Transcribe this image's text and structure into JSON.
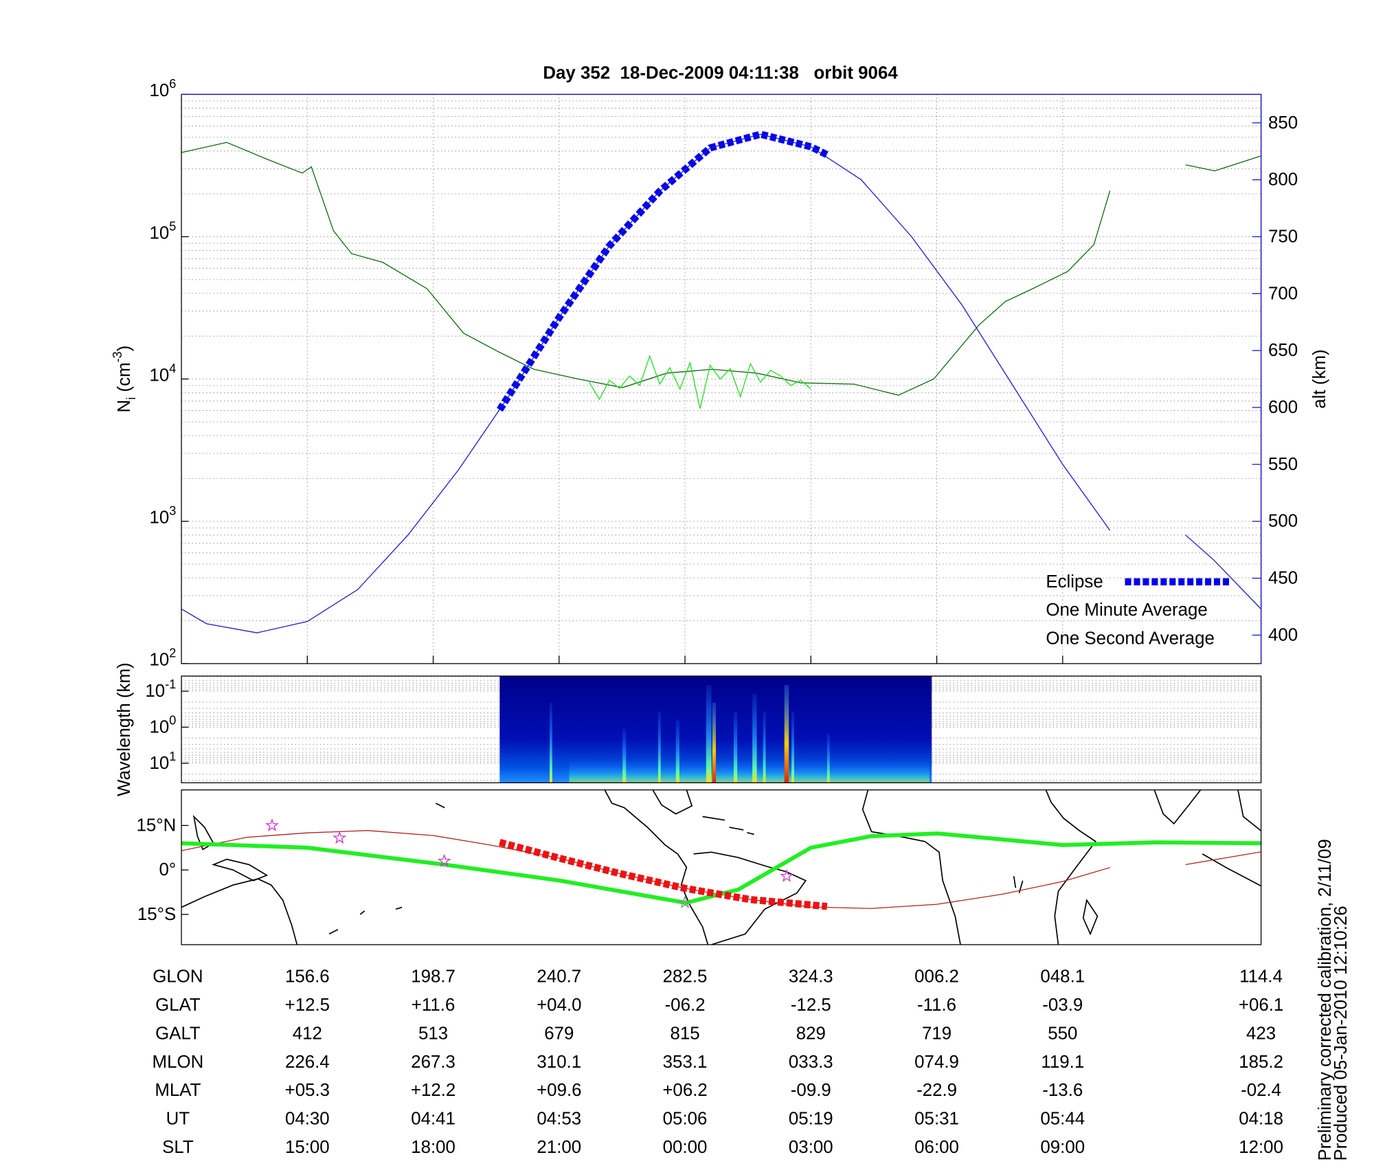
{
  "title": "Day 352  18-Dec-2009 04:11:38   orbit 9064",
  "chart_data": [
    {
      "type": "line",
      "xlim": [
        17.5,
        124.7
      ],
      "xticks": [
        30,
        42.5,
        55,
        67.5,
        80,
        92.5,
        105
      ],
      "ylim": [
        100,
        1000000
      ],
      "log_y": true,
      "yticks": [
        {
          "value": 100,
          "label": "10",
          "exponent": "2"
        },
        {
          "value": 1000,
          "label": "10",
          "exponent": "3"
        },
        {
          "value": 10000,
          "label": "10",
          "exponent": "4"
        },
        {
          "value": 100000,
          "label": "10",
          "exponent": "5"
        },
        {
          "value": 1000000,
          "label": "10",
          "exponent": "6"
        }
      ],
      "ylabel": {
        "symbol": "N",
        "subscript": "i",
        "unit": " (cm",
        "superscript": "-3",
        "close": ")"
      },
      "y2lim": [
        375,
        875
      ],
      "y2ticks": [
        400,
        450,
        500,
        550,
        600,
        650,
        700,
        750,
        800,
        850
      ],
      "y2label": "alt (km)",
      "y2color": "#1a1ad0",
      "grid": "both",
      "legend": "lower right",
      "series": [
        {
          "name": "Eclipse",
          "color": "#0000ee",
          "axis": "y2",
          "style": "thick-dashed",
          "x": [
            49.1,
            55,
            60,
            65,
            70,
            75,
            80,
            81.6
          ],
          "values": [
            598,
            679,
            742,
            790,
            828,
            840,
            829,
            822
          ]
        },
        {
          "name": "One Minute Average",
          "color": "#0b6b0b",
          "legend_color": "#000000",
          "x": [
            17.5,
            22,
            26,
            29.5,
            30.4,
            32.6,
            34.4,
            37.5,
            41.9,
            45.5,
            49,
            52.5,
            56.9,
            61.3,
            65.7,
            70.2,
            74.6,
            79,
            84.3,
            88.7,
            92.2,
            96.7,
            99.3,
            102,
            105.5,
            108.1,
            109.7,
            113,
            117.2,
            120.1,
            124.7
          ],
          "values": [
            390000,
            460000,
            350000,
            280000,
            310000,
            110000,
            76000,
            66000,
            43000,
            21000,
            15500,
            11700,
            10000,
            8700,
            11000,
            11700,
            11000,
            9400,
            9200,
            7700,
            10000,
            24000,
            35000,
            43000,
            57000,
            88000,
            210000,
            null,
            320000,
            290000,
            370000
          ]
        },
        {
          "name": "One Second Average",
          "color": "#22dd22",
          "x": [
            58,
            59,
            60,
            61,
            62,
            63,
            64,
            65,
            66,
            67,
            68,
            69,
            70,
            71,
            72,
            73,
            74,
            75,
            76,
            77,
            78,
            79,
            80
          ],
          "values": [
            9500,
            7200,
            9800,
            8600,
            10500,
            9000,
            14500,
            9200,
            12000,
            8500,
            13000,
            6200,
            12500,
            10000,
            11800,
            7500,
            12800,
            9500,
            11500,
            10500,
            9000,
            9800,
            8500
          ]
        },
        {
          "color": "#1a1ad0",
          "axis": "y2",
          "x": [
            17.5,
            20,
            25,
            30,
            35,
            40,
            45,
            50,
            55,
            60,
            65,
            70,
            75,
            80,
            85,
            90,
            95,
            100,
            105,
            109.7,
            113,
            117.2,
            120,
            124.7
          ],
          "values": [
            423,
            410,
            402,
            412,
            440,
            488,
            545,
            610,
            679,
            742,
            790,
            828,
            840,
            829,
            800,
            750,
            690,
            620,
            550,
            492,
            null,
            488,
            466,
            423
          ]
        }
      ]
    },
    {
      "type": "spectrogram",
      "xlim": [
        17.5,
        124.7
      ],
      "ylim": [
        0.038,
        35
      ],
      "log_y": true,
      "inverted": true,
      "yticks": [
        {
          "value": 0.1,
          "label": "10",
          "exponent": "-1"
        },
        {
          "value": 1,
          "label": "10",
          "exponent": "0"
        },
        {
          "value": 10,
          "label": "10",
          "exponent": "1"
        }
      ],
      "ylabel": "Wavelength (km)",
      "grid": "y",
      "x_range": [
        49.1,
        92.0
      ]
    },
    {
      "type": "map",
      "xlim": [
        17.5,
        124.7
      ],
      "ylim": [
        -25.2,
        27
      ],
      "yticks": [
        {
          "value": -15,
          "label": "15°S"
        },
        {
          "value": 0,
          "label": "0°"
        },
        {
          "value": 15,
          "label": "15°N"
        }
      ],
      "series": [
        {
          "color": "#b22222",
          "x": [
            17.5,
            24,
            30,
            36,
            42.5,
            48,
            55,
            61,
            67.5,
            74,
            80,
            86,
            92.5,
            99,
            105,
            109.7,
            113,
            117.2,
            124.7
          ],
          "values": [
            6.5,
            11,
            12.5,
            13.3,
            11.6,
            8.5,
            4.0,
            -1.2,
            -6.2,
            -10,
            -12.5,
            -13,
            -11.6,
            -8.2,
            -3.9,
            0.8,
            null,
            1.8,
            6.1
          ]
        },
        {
          "color": "#22ee22",
          "style": "thick",
          "x": [
            17.5,
            30,
            43.6,
            55.1,
            67.6,
            72.8,
            80,
            86,
            92.6,
            105,
            114.3,
            124.7
          ],
          "values": [
            9,
            7.5,
            1.8,
            -3.6,
            -11.1,
            -6.6,
            7.5,
            11.4,
            12.3,
            8.4,
            9.3,
            9
          ]
        },
        {
          "color": "#ee1111",
          "style": "thick-dashed",
          "x": [
            49.1,
            55,
            61,
            67.5,
            74,
            81.6
          ],
          "values": [
            9.3,
            4,
            -1.2,
            -6.2,
            -10,
            -12.3
          ]
        }
      ],
      "points": {
        "colors": [
          "#cc33cc",
          "#cc33cc",
          "#cc33cc",
          "#888888",
          "#cc33cc"
        ],
        "x": [
          26.5,
          33.2,
          43.6,
          67.5,
          77.6
        ],
        "values": [
          15,
          10.8,
          3,
          -11,
          -2.1
        ]
      }
    }
  ],
  "table": {
    "rows": [
      {
        "label": "GLON",
        "cells": [
          "156.6",
          "198.7",
          "240.7",
          "282.5",
          "324.3",
          "006.2",
          "048.1",
          "114.4"
        ]
      },
      {
        "label": "GLAT",
        "cells": [
          "+12.5",
          "+11.6",
          "+04.0",
          "-06.2",
          "-12.5",
          "-11.6",
          "-03.9",
          "+06.1"
        ]
      },
      {
        "label": "GALT",
        "cells": [
          "412",
          "513",
          "679",
          "815",
          "829",
          "719",
          "550",
          "423"
        ]
      },
      {
        "label": "MLON",
        "cells": [
          "226.4",
          "267.3",
          "310.1",
          "353.1",
          "033.3",
          "074.9",
          "119.1",
          "185.2"
        ]
      },
      {
        "label": "MLAT",
        "cells": [
          "+05.3",
          "+12.2",
          "+09.6",
          "+06.2",
          "-09.9",
          "-22.9",
          "-13.6",
          "-02.4"
        ]
      },
      {
        "label": "UT",
        "cells": [
          "04:30",
          "04:41",
          "04:53",
          "05:06",
          "05:19",
          "05:31",
          "05:44",
          "04:18"
        ]
      },
      {
        "label": "SLT",
        "cells": [
          "15:00",
          "18:00",
          "21:00",
          "00:00",
          "03:00",
          "06:00",
          "09:00",
          "12:00"
        ]
      }
    ]
  },
  "footnotes": [
    "Preliminary corrected calibration, 2/11/09",
    "Produced 05-Jan-2010 12:10:26"
  ]
}
